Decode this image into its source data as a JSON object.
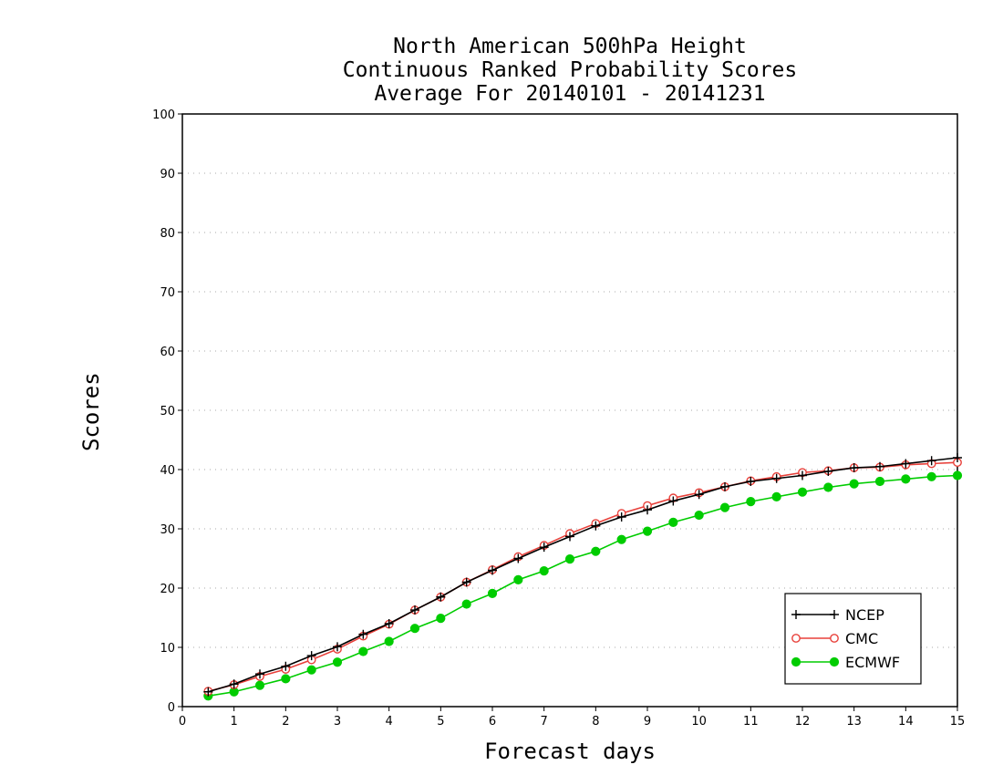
{
  "chart_data": {
    "type": "line",
    "title_lines": [
      "North American 500hPa Height",
      "Continuous Ranked Probability Scores",
      "Average For 20140101 - 20141231"
    ],
    "xlabel": "Forecast days",
    "ylabel": "Scores",
    "xlim": [
      0,
      15
    ],
    "ylim": [
      0,
      100
    ],
    "xticks": [
      0,
      1,
      2,
      3,
      4,
      5,
      6,
      7,
      8,
      9,
      10,
      11,
      12,
      13,
      14,
      15
    ],
    "yticks": [
      0,
      10,
      20,
      30,
      40,
      50,
      60,
      70,
      80,
      90,
      100
    ],
    "grid": "horizontal-dotted",
    "legend_position": "bottom-right",
    "x": [
      0.5,
      1,
      1.5,
      2,
      2.5,
      3,
      3.5,
      4,
      4.5,
      5,
      5.5,
      6,
      6.5,
      7,
      7.5,
      8,
      8.5,
      9,
      9.5,
      10,
      10.5,
      11,
      11.5,
      12,
      12.5,
      13,
      13.5,
      14,
      14.5,
      15
    ],
    "series": [
      {
        "name": "NCEP",
        "color": "#000000",
        "marker": "plus",
        "values": [
          2.5,
          3.8,
          5.5,
          6.8,
          8.6,
          10.1,
          12.2,
          14.0,
          16.3,
          18.5,
          21.0,
          23.0,
          25.0,
          26.9,
          28.7,
          30.5,
          32.0,
          33.2,
          34.7,
          35.8,
          37.1,
          38.0,
          38.5,
          39.0,
          39.7,
          40.3,
          40.5,
          41.0,
          41.5,
          42.0
        ]
      },
      {
        "name": "CMC",
        "color": "#e8403a",
        "marker": "open-circle",
        "values": [
          2.6,
          3.7,
          5.1,
          6.3,
          7.9,
          9.7,
          11.9,
          13.9,
          16.3,
          18.5,
          21.0,
          23.1,
          25.3,
          27.2,
          29.2,
          30.9,
          32.6,
          33.9,
          35.2,
          36.1,
          37.1,
          38.1,
          38.8,
          39.5,
          39.8,
          40.3,
          40.4,
          40.8,
          41.0,
          41.2
        ]
      },
      {
        "name": "ECMWF",
        "color": "#00cc00",
        "marker": "filled-circle",
        "values": [
          1.8,
          2.5,
          3.6,
          4.7,
          6.2,
          7.5,
          9.3,
          11.0,
          13.2,
          14.9,
          17.3,
          19.1,
          21.4,
          22.9,
          24.9,
          26.2,
          28.2,
          29.6,
          31.1,
          32.3,
          33.6,
          34.6,
          35.4,
          36.2,
          37.0,
          37.6,
          38.0,
          38.4,
          38.8,
          39.0
        ]
      }
    ]
  }
}
